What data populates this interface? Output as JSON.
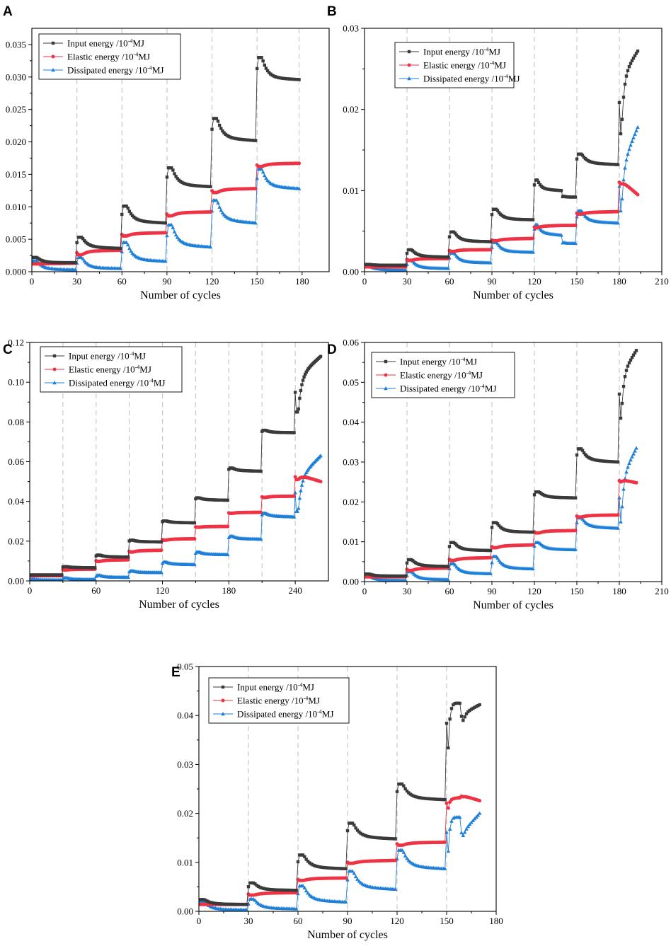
{
  "figure": {
    "series_meta": [
      {
        "key": "input",
        "prefix": "Input energy /10",
        "exp": "-4",
        "unit": "MJ",
        "color": "#3a3a3a",
        "marker": "square"
      },
      {
        "key": "elastic",
        "prefix": "Elastic energy /10",
        "exp": "-4",
        "unit": "MJ",
        "color": "#ee3344",
        "marker": "circle"
      },
      {
        "key": "dissipated",
        "prefix": "Dissipated energy /10",
        "exp": "-4",
        "unit": "MJ",
        "color": "#1e7fd8",
        "marker": "triangle"
      }
    ],
    "grid_line_color": "#c8c8c8"
  },
  "chart_data": [
    {
      "panel": "A",
      "type": "line",
      "xlabel": "Number of cycles",
      "ylabel": "",
      "xlim": [
        0,
        198
      ],
      "ylim": [
        0,
        0.0375
      ],
      "xticks": [
        0,
        30,
        60,
        90,
        120,
        150,
        180
      ],
      "yticks": [
        0.0,
        0.005,
        0.01,
        0.015,
        0.02,
        0.025,
        0.03,
        0.035
      ],
      "ytick_decimals": 3,
      "dashed_vlines": [
        30,
        60,
        90,
        120,
        150,
        178
      ],
      "levels": [
        {
          "start": 0,
          "end": 29,
          "input": [
            0.0022,
            0.0014,
            0.0014
          ],
          "elastic": [
            0.0012,
            0.0012,
            0.0013
          ],
          "dissipated": [
            0.0017,
            0.0004,
            0.0003
          ]
        },
        {
          "start": 30,
          "end": 59,
          "input": [
            0.0053,
            0.0038,
            0.0036
          ],
          "elastic": [
            0.0026,
            0.0032,
            0.0033
          ],
          "dissipated": [
            0.0022,
            0.0006,
            0.0005
          ]
        },
        {
          "start": 60,
          "end": 89,
          "input": [
            0.0101,
            0.0078,
            0.0075
          ],
          "elastic": [
            0.0055,
            0.0059,
            0.006
          ],
          "dissipated": [
            0.0045,
            0.0019,
            0.0016
          ]
        },
        {
          "start": 90,
          "end": 119,
          "input": [
            0.016,
            0.0134,
            0.0131
          ],
          "elastic": [
            0.0086,
            0.0091,
            0.0092
          ],
          "dissipated": [
            0.0072,
            0.0042,
            0.0038
          ]
        },
        {
          "start": 120,
          "end": 149,
          "input": [
            0.0236,
            0.0206,
            0.0202
          ],
          "elastic": [
            0.0122,
            0.0127,
            0.0128
          ],
          "dissipated": [
            0.011,
            0.008,
            0.0075
          ]
        },
        {
          "start": 150,
          "end": 178,
          "input": [
            0.033,
            0.0299,
            0.0296
          ],
          "elastic": [
            0.0162,
            0.0166,
            0.0167
          ],
          "dissipated": [
            0.0158,
            0.0132,
            0.0128
          ]
        }
      ],
      "legend": "top-left"
    },
    {
      "panel": "B",
      "type": "line",
      "xlabel": "Number of cycles",
      "ylabel": "",
      "xlim": [
        0,
        210
      ],
      "ylim": [
        0,
        0.03
      ],
      "xticks": [
        0,
        30,
        60,
        90,
        120,
        150,
        180,
        210
      ],
      "yticks": [
        0.0,
        0.01,
        0.02,
        0.03
      ],
      "ytick_decimals": 2,
      "dashed_vlines": [
        30,
        60,
        90,
        120,
        150,
        180
      ],
      "levels": [
        {
          "start": 0,
          "end": 29,
          "input": [
            0.0009,
            0.0008,
            0.0008
          ],
          "elastic": [
            0.0006,
            0.0006,
            0.0006
          ],
          "dissipated": [
            0.0007,
            0.0003,
            0.0002
          ]
        },
        {
          "start": 30,
          "end": 59,
          "input": [
            0.0027,
            0.0019,
            0.0018
          ],
          "elastic": [
            0.0014,
            0.0016,
            0.0016
          ],
          "dissipated": [
            0.0014,
            0.0005,
            0.0004
          ]
        },
        {
          "start": 60,
          "end": 89,
          "input": [
            0.0049,
            0.0038,
            0.0037
          ],
          "elastic": [
            0.0025,
            0.0027,
            0.0027
          ],
          "dissipated": [
            0.0023,
            0.0012,
            0.0011
          ]
        },
        {
          "start": 90,
          "end": 119,
          "input": [
            0.0077,
            0.0065,
            0.0064
          ],
          "elastic": [
            0.0038,
            0.004,
            0.0041
          ],
          "dissipated": [
            0.0036,
            0.0025,
            0.0024
          ]
        },
        {
          "start": 120,
          "end": 139,
          "input": [
            0.0113,
            0.0102,
            0.01
          ],
          "elastic": [
            0.0054,
            0.0056,
            0.0057
          ],
          "dissipated": [
            0.0058,
            0.0048,
            0.0045
          ]
        },
        {
          "start": 140,
          "end": 149,
          "input": [
            0.0093,
            0.0092,
            0.0092
          ],
          "elastic": [
            0.0057,
            0.0057,
            0.0057
          ],
          "dissipated": [
            0.0036,
            0.0035,
            0.0035
          ]
        },
        {
          "start": 150,
          "end": 179,
          "input": [
            0.0145,
            0.0134,
            0.0132
          ],
          "elastic": [
            0.0071,
            0.0073,
            0.0074
          ],
          "dissipated": [
            0.0075,
            0.0062,
            0.006
          ]
        },
        {
          "start": 180,
          "end": 193,
          "input": [
            0.017,
            0.024,
            0.0272
          ],
          "elastic": [
            0.0108,
            0.0112,
            0.0095
          ],
          "dissipated": [
            0.0075,
            0.013,
            0.0178
          ]
        }
      ],
      "legend": "top-center"
    },
    {
      "panel": "C",
      "type": "line",
      "xlabel": "Number of cycles",
      "ylabel": "",
      "xlim": [
        0,
        270
      ],
      "ylim": [
        0,
        0.12
      ],
      "xticks": [
        0,
        60,
        120,
        180,
        240
      ],
      "yticks": [
        0.0,
        0.02,
        0.04,
        0.06,
        0.08,
        0.1,
        0.12
      ],
      "ytick_decimals": 2,
      "dashed_vlines": [
        30,
        60,
        90,
        120,
        150,
        180,
        210,
        240
      ],
      "levels": [
        {
          "start": 0,
          "end": 29,
          "input": [
            0.003,
            0.003,
            0.003
          ],
          "elastic": [
            0.0025,
            0.0026,
            0.0026
          ],
          "dissipated": [
            0.0008,
            0.0005,
            0.0004
          ]
        },
        {
          "start": 30,
          "end": 59,
          "input": [
            0.0072,
            0.0068,
            0.0066
          ],
          "elastic": [
            0.0055,
            0.0058,
            0.0059
          ],
          "dissipated": [
            0.0015,
            0.0008,
            0.0007
          ]
        },
        {
          "start": 60,
          "end": 89,
          "input": [
            0.013,
            0.0122,
            0.012
          ],
          "elastic": [
            0.0098,
            0.0104,
            0.0106
          ],
          "dissipated": [
            0.0028,
            0.0019,
            0.0018
          ]
        },
        {
          "start": 90,
          "end": 119,
          "input": [
            0.0205,
            0.0198,
            0.0196
          ],
          "elastic": [
            0.0145,
            0.0152,
            0.0154
          ],
          "dissipated": [
            0.005,
            0.0043,
            0.0042
          ]
        },
        {
          "start": 120,
          "end": 149,
          "input": [
            0.0302,
            0.0295,
            0.0292
          ],
          "elastic": [
            0.0205,
            0.021,
            0.0212
          ],
          "dissipated": [
            0.0095,
            0.0085,
            0.0082
          ]
        },
        {
          "start": 150,
          "end": 179,
          "input": [
            0.0418,
            0.0409,
            0.0406
          ],
          "elastic": [
            0.027,
            0.0273,
            0.0274
          ],
          "dissipated": [
            0.0145,
            0.0135,
            0.0132
          ]
        },
        {
          "start": 180,
          "end": 209,
          "input": [
            0.0568,
            0.0556,
            0.0552
          ],
          "elastic": [
            0.034,
            0.0344,
            0.0345
          ],
          "dissipated": [
            0.0225,
            0.0213,
            0.021
          ]
        },
        {
          "start": 210,
          "end": 239,
          "input": [
            0.0758,
            0.0748,
            0.0746
          ],
          "elastic": [
            0.042,
            0.0425,
            0.0426
          ],
          "dissipated": [
            0.034,
            0.0327,
            0.0322
          ]
        },
        {
          "start": 240,
          "end": 263,
          "input": [
            0.085,
            0.103,
            0.113
          ],
          "elastic": [
            0.051,
            0.0535,
            0.05
          ],
          "dissipated": [
            0.035,
            0.052,
            0.063
          ]
        }
      ],
      "legend": "top-left"
    },
    {
      "panel": "D",
      "type": "line",
      "xlabel": "Number of cycles",
      "ylabel": "",
      "xlim": [
        0,
        210
      ],
      "ylim": [
        0,
        0.06
      ],
      "xticks": [
        0,
        30,
        60,
        90,
        120,
        150,
        180,
        210
      ],
      "yticks": [
        0.0,
        0.01,
        0.02,
        0.03,
        0.04,
        0.05,
        0.06
      ],
      "ytick_decimals": 2,
      "dashed_vlines": [
        30,
        60,
        90,
        120,
        150,
        180
      ],
      "levels": [
        {
          "start": 0,
          "end": 29,
          "input": [
            0.0019,
            0.0014,
            0.0014
          ],
          "elastic": [
            0.0012,
            0.0012,
            0.0012
          ],
          "dissipated": [
            0.0015,
            0.0004,
            0.0003
          ]
        },
        {
          "start": 30,
          "end": 59,
          "input": [
            0.0055,
            0.004,
            0.0038
          ],
          "elastic": [
            0.0028,
            0.0033,
            0.0034
          ],
          "dissipated": [
            0.0025,
            0.0007,
            0.0005
          ]
        },
        {
          "start": 60,
          "end": 89,
          "input": [
            0.0098,
            0.008,
            0.0078
          ],
          "elastic": [
            0.0053,
            0.0058,
            0.006
          ],
          "dissipated": [
            0.0045,
            0.0022,
            0.002
          ]
        },
        {
          "start": 90,
          "end": 119,
          "input": [
            0.0148,
            0.0126,
            0.0124
          ],
          "elastic": [
            0.0085,
            0.009,
            0.0092
          ],
          "dissipated": [
            0.0063,
            0.0035,
            0.0032
          ]
        },
        {
          "start": 120,
          "end": 149,
          "input": [
            0.0225,
            0.0212,
            0.021
          ],
          "elastic": [
            0.0122,
            0.0127,
            0.0128
          ],
          "dissipated": [
            0.0098,
            0.0082,
            0.008
          ]
        },
        {
          "start": 150,
          "end": 179,
          "input": [
            0.0333,
            0.0305,
            0.03
          ],
          "elastic": [
            0.0162,
            0.0166,
            0.0167
          ],
          "dissipated": [
            0.016,
            0.0138,
            0.0134
          ]
        },
        {
          "start": 180,
          "end": 192,
          "input": [
            0.041,
            0.052,
            0.058
          ],
          "elastic": [
            0.025,
            0.0256,
            0.0248
          ],
          "dissipated": [
            0.015,
            0.026,
            0.0335
          ]
        }
      ],
      "legend": "top-left"
    },
    {
      "panel": "E",
      "type": "line",
      "xlabel": "Number of cycles",
      "ylabel": "",
      "xlim": [
        0,
        180
      ],
      "ylim": [
        0,
        0.05
      ],
      "xticks": [
        0,
        30,
        60,
        90,
        120,
        150,
        180
      ],
      "yticks": [
        0.0,
        0.01,
        0.02,
        0.03,
        0.04,
        0.05
      ],
      "ytick_decimals": 2,
      "dashed_vlines": [
        30,
        60,
        90,
        120,
        150
      ],
      "levels": [
        {
          "start": 0,
          "end": 29,
          "input": [
            0.0024,
            0.0015,
            0.0014
          ],
          "elastic": [
            0.0014,
            0.0014,
            0.0014
          ],
          "dissipated": [
            0.002,
            0.0004,
            0.0003
          ]
        },
        {
          "start": 30,
          "end": 59,
          "input": [
            0.0058,
            0.0044,
            0.0043
          ],
          "elastic": [
            0.0033,
            0.0037,
            0.0038
          ],
          "dissipated": [
            0.0025,
            0.0007,
            0.0005
          ]
        },
        {
          "start": 60,
          "end": 89,
          "input": [
            0.0115,
            0.009,
            0.0087
          ],
          "elastic": [
            0.0063,
            0.0067,
            0.0068
          ],
          "dissipated": [
            0.0052,
            0.0023,
            0.0019
          ]
        },
        {
          "start": 90,
          "end": 119,
          "input": [
            0.018,
            0.0152,
            0.0148
          ],
          "elastic": [
            0.0098,
            0.0102,
            0.0104
          ],
          "dissipated": [
            0.0082,
            0.005,
            0.0045
          ]
        },
        {
          "start": 120,
          "end": 149,
          "input": [
            0.026,
            0.0232,
            0.0228
          ],
          "elastic": [
            0.0135,
            0.014,
            0.0141
          ],
          "dissipated": [
            0.0125,
            0.0092,
            0.0087
          ]
        },
        {
          "start": 150,
          "end": 158,
          "input": [
            0.033,
            0.0428,
            0.0425
          ],
          "elastic": [
            0.021,
            0.023,
            0.0232
          ],
          "dissipated": [
            0.012,
            0.0195,
            0.0192
          ]
        },
        {
          "start": 159,
          "end": 170,
          "input": [
            0.039,
            0.0405,
            0.0422
          ],
          "elastic": [
            0.0234,
            0.0236,
            0.0226
          ],
          "dissipated": [
            0.0155,
            0.0165,
            0.02
          ]
        }
      ],
      "legend": "top-left"
    }
  ]
}
